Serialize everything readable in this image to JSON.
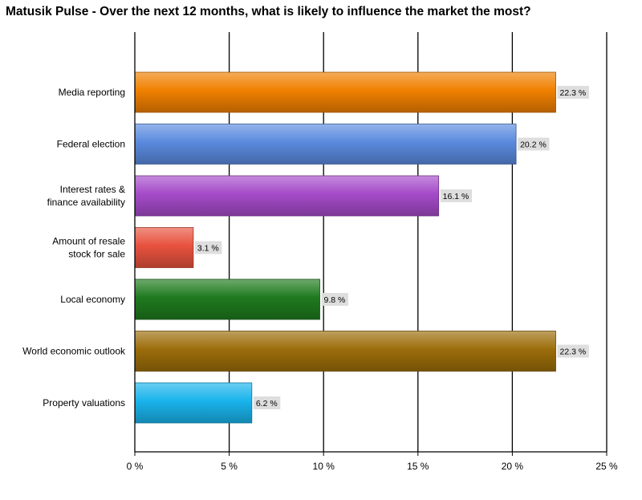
{
  "chart_data": {
    "type": "bar",
    "orientation": "horizontal",
    "title": "Matusik Pulse - Over the next 12 months, what is likely to influence the market the most?",
    "categories": [
      "Media reporting",
      "Federal election",
      "Interest rates &\nfinance availability",
      "Amount of resale\nstock for sale",
      "Local economy",
      "World economic outlook",
      "Property valuations"
    ],
    "values": [
      22.3,
      20.2,
      16.1,
      3.1,
      9.8,
      22.3,
      6.2
    ],
    "value_labels": [
      "22.3 %",
      "20.2 %",
      "16.1 %",
      "3.1 %",
      "9.8 %",
      "22.3 %",
      "6.2 %"
    ],
    "colors": [
      "#f08000",
      "#5a8ade",
      "#a54bc9",
      "#e8523e",
      "#1f7a1f",
      "#9c6d0a",
      "#19b4ec"
    ],
    "xlim": [
      0,
      25
    ],
    "xticks": [
      0,
      5,
      10,
      15,
      20,
      25
    ],
    "xtick_labels": [
      "0 %",
      "5 %",
      "10 %",
      "15 %",
      "20 %",
      "25 %"
    ],
    "xlabel": "",
    "ylabel": "",
    "grid": "vertical"
  }
}
